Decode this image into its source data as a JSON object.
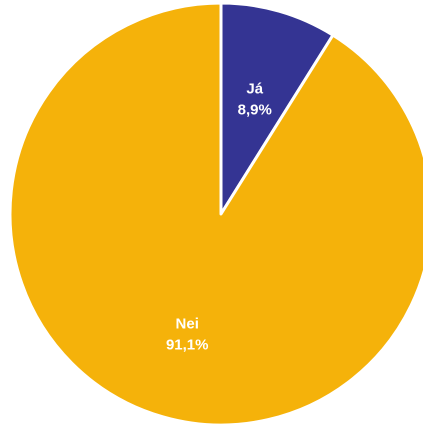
{
  "chart_data": {
    "type": "pie",
    "title": "",
    "start": "top",
    "direction": "clockwise",
    "slices": [
      {
        "label": "Já",
        "value": 8.9,
        "value_label": "8,9%",
        "color": "#343493"
      },
      {
        "label": "Nei",
        "value": 91.1,
        "value_label": "91,1%",
        "color": "#F5B20A"
      }
    ],
    "slice_border_color": "#ffffff"
  }
}
